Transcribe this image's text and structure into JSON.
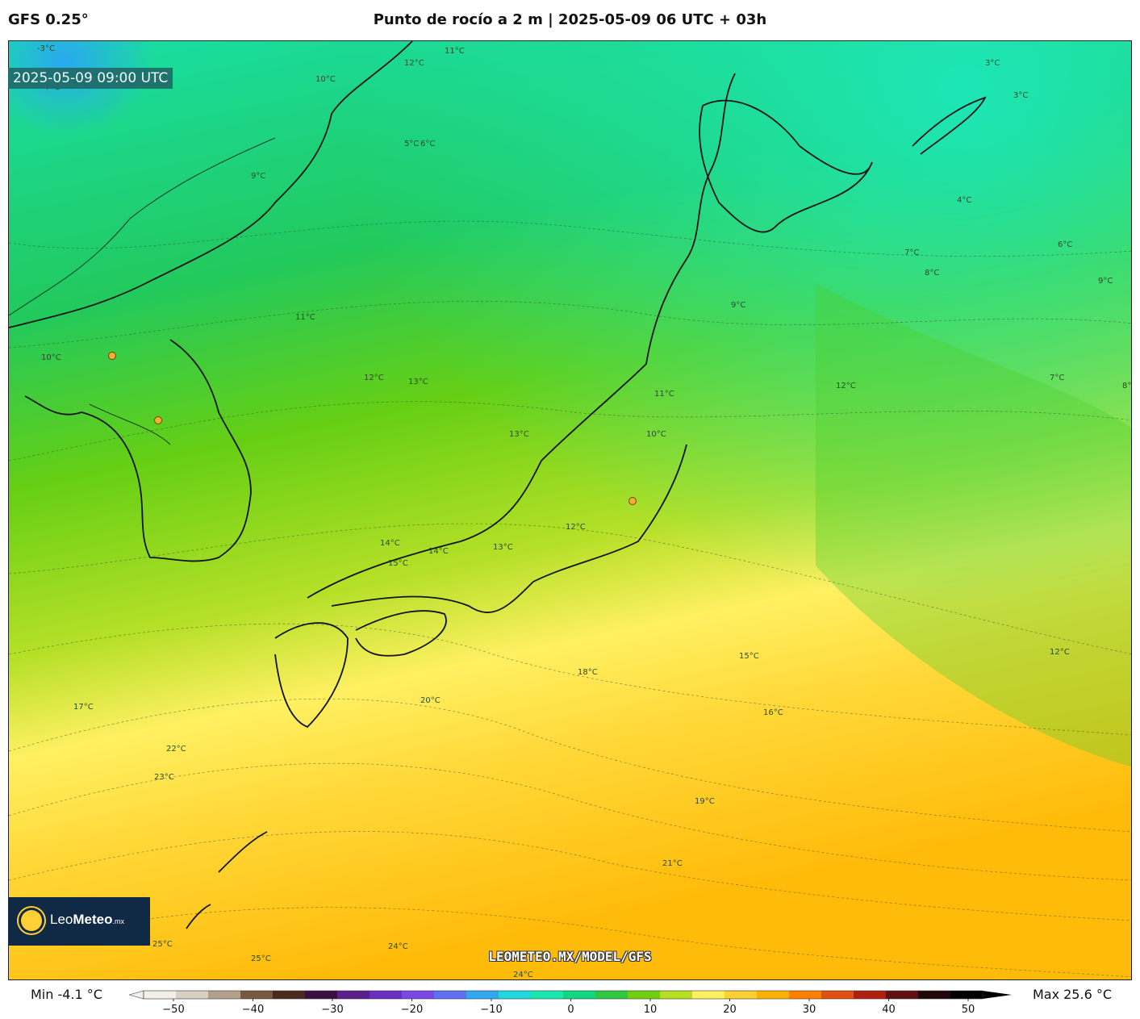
{
  "header": {
    "model": "GFS 0.25°",
    "title": "Punto de rocío a 2 m | 2025-05-09 06 UTC + 03h"
  },
  "map": {
    "valid_time": "2025-05-09 09:00 UTC",
    "watermark": "LEOMETEO.MX/MODEL/GFS",
    "contour_labels": [
      "-3°C",
      "3°C",
      "3°C",
      "10°C",
      "11°C",
      "12°C",
      "7°C",
      "8°C",
      "9°C",
      "5°C",
      "6°C",
      "4°C",
      "7°C",
      "8°C",
      "9°C",
      "11°C",
      "10°C",
      "12°C",
      "13°C",
      "12°C",
      "13°C",
      "14°C",
      "15°C",
      "14°C",
      "13°C",
      "12°C",
      "10°C",
      "11°C",
      "9°C",
      "15°C",
      "18°C",
      "20°C",
      "16°C",
      "12°C",
      "17°C",
      "22°C",
      "23°C",
      "19°C",
      "21°C",
      "24°C",
      "25°C",
      "24°C",
      "25°C",
      "8°C",
      "7°C",
      "6°C"
    ]
  },
  "logo": {
    "text_light": "Leo",
    "text_bold": "Meteo",
    "suffix": ".mx"
  },
  "colorbar": {
    "min_label": "Min -4.1 °C",
    "max_label": "Max 25.6 °C",
    "ticks": [
      "−50",
      "−40",
      "−30",
      "−20",
      "−10",
      "0",
      "10",
      "20",
      "30",
      "40",
      "50"
    ],
    "range": [
      -50,
      50
    ],
    "colors": [
      "#f2efe9",
      "#d9cfc2",
      "#b3a08a",
      "#7a5a3f",
      "#4a2a1a",
      "#3a1040",
      "#5a1f8a",
      "#6b2fc0",
      "#7a48e0",
      "#5f6ff0",
      "#2fa8f0",
      "#20d8e0",
      "#18e8b0",
      "#10d880",
      "#30c840",
      "#70d010",
      "#b8e020",
      "#fff060",
      "#ffd030",
      "#ffb000",
      "#ff8000",
      "#e05010",
      "#b02010",
      "#601010",
      "#200808",
      "#000000"
    ]
  }
}
